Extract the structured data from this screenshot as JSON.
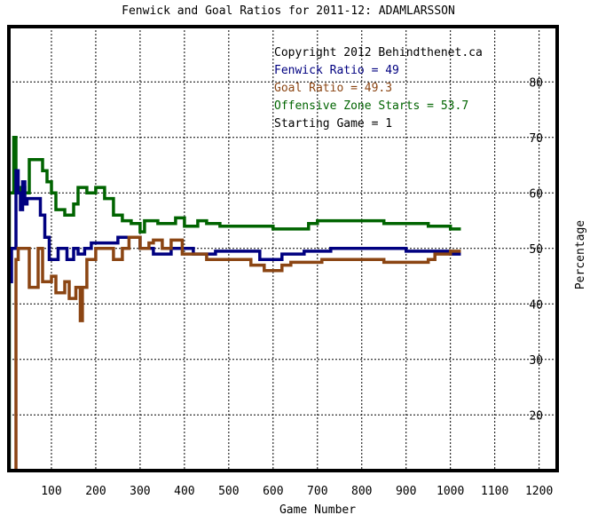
{
  "chart_data": {
    "type": "line",
    "title": "Fenwick and Goal Ratios for 2011-12: ADAMLARSSON",
    "xlabel": "Game Number",
    "ylabel": "Percentage",
    "xlim": [
      0,
      1250
    ],
    "ylim": [
      10,
      90
    ],
    "xticks": [
      100,
      200,
      300,
      400,
      500,
      600,
      700,
      800,
      900,
      1000,
      1100,
      1200
    ],
    "yticks": [
      20,
      30,
      40,
      50,
      60,
      70,
      80
    ],
    "grid": true,
    "annotations": [
      {
        "text": "Copyright 2012 Behindthenet.ca",
        "color": "#000000"
      },
      {
        "text": "Fenwick Ratio = 49",
        "color": "#000080"
      },
      {
        "text": "Goal Ratio = 49.3",
        "color": "#8b4513"
      },
      {
        "text": "Offensive Zone Starts = 53.7",
        "color": "#006400"
      },
      {
        "text": "Starting Game = 1",
        "color": "#000000"
      }
    ],
    "series": [
      {
        "name": "Fenwick Ratio",
        "color": "#000080",
        "points": [
          [
            10,
            44
          ],
          [
            10,
            50
          ],
          [
            20,
            50
          ],
          [
            20,
            64
          ],
          [
            25,
            64
          ],
          [
            25,
            60
          ],
          [
            30,
            60
          ],
          [
            30,
            57
          ],
          [
            35,
            57
          ],
          [
            35,
            62
          ],
          [
            40,
            62
          ],
          [
            40,
            58
          ],
          [
            45,
            58
          ],
          [
            45,
            59
          ],
          [
            75,
            59
          ],
          [
            75,
            56
          ],
          [
            85,
            56
          ],
          [
            85,
            52
          ],
          [
            95,
            52
          ],
          [
            95,
            48
          ],
          [
            115,
            48
          ],
          [
            115,
            50
          ],
          [
            135,
            50
          ],
          [
            135,
            48
          ],
          [
            150,
            48
          ],
          [
            150,
            50
          ],
          [
            160,
            50
          ],
          [
            160,
            49
          ],
          [
            175,
            49
          ],
          [
            175,
            50
          ],
          [
            190,
            50
          ],
          [
            190,
            51
          ],
          [
            250,
            51
          ],
          [
            250,
            52
          ],
          [
            300,
            52
          ],
          [
            300,
            50
          ],
          [
            330,
            50
          ],
          [
            330,
            49
          ],
          [
            370,
            49
          ],
          [
            370,
            50
          ],
          [
            420,
            50
          ],
          [
            420,
            49
          ],
          [
            470,
            49
          ],
          [
            470,
            49.5
          ],
          [
            570,
            49.5
          ],
          [
            570,
            48
          ],
          [
            620,
            48
          ],
          [
            620,
            49
          ],
          [
            670,
            49
          ],
          [
            670,
            49.5
          ],
          [
            730,
            49.5
          ],
          [
            730,
            50
          ],
          [
            900,
            50
          ],
          [
            900,
            49.5
          ],
          [
            1000,
            49.5
          ],
          [
            1000,
            49
          ],
          [
            1020,
            49
          ]
        ]
      },
      {
        "name": "Goal Ratio",
        "color": "#8b4513",
        "points": [
          [
            20,
            0
          ],
          [
            20,
            48
          ],
          [
            25,
            48
          ],
          [
            25,
            50
          ],
          [
            50,
            50
          ],
          [
            50,
            43
          ],
          [
            70,
            43
          ],
          [
            70,
            50
          ],
          [
            80,
            50
          ],
          [
            80,
            44
          ],
          [
            100,
            44
          ],
          [
            100,
            45
          ],
          [
            110,
            45
          ],
          [
            110,
            42
          ],
          [
            130,
            42
          ],
          [
            130,
            44
          ],
          [
            140,
            44
          ],
          [
            140,
            41
          ],
          [
            155,
            41
          ],
          [
            155,
            43
          ],
          [
            165,
            43
          ],
          [
            165,
            37
          ],
          [
            170,
            37
          ],
          [
            170,
            43
          ],
          [
            180,
            43
          ],
          [
            180,
            48
          ],
          [
            200,
            48
          ],
          [
            200,
            50
          ],
          [
            240,
            50
          ],
          [
            240,
            48
          ],
          [
            260,
            48
          ],
          [
            260,
            50
          ],
          [
            275,
            50
          ],
          [
            275,
            52
          ],
          [
            300,
            52
          ],
          [
            300,
            50
          ],
          [
            320,
            50
          ],
          [
            320,
            51
          ],
          [
            330,
            51
          ],
          [
            330,
            51.5
          ],
          [
            350,
            51.5
          ],
          [
            350,
            50
          ],
          [
            370,
            50
          ],
          [
            370,
            51.5
          ],
          [
            395,
            51.5
          ],
          [
            395,
            49
          ],
          [
            450,
            49
          ],
          [
            450,
            48
          ],
          [
            550,
            48
          ],
          [
            550,
            47
          ],
          [
            580,
            47
          ],
          [
            580,
            46
          ],
          [
            620,
            46
          ],
          [
            620,
            47
          ],
          [
            640,
            47
          ],
          [
            640,
            47.5
          ],
          [
            710,
            47.5
          ],
          [
            710,
            48
          ],
          [
            850,
            48
          ],
          [
            850,
            47.5
          ],
          [
            950,
            47.5
          ],
          [
            950,
            48
          ],
          [
            965,
            48
          ],
          [
            965,
            49
          ],
          [
            1000,
            49
          ],
          [
            1000,
            49.5
          ],
          [
            1020,
            49.5
          ]
        ]
      },
      {
        "name": "Offensive Zone Starts",
        "color": "#006400",
        "points": [
          [
            5,
            0
          ],
          [
            5,
            60
          ],
          [
            15,
            60
          ],
          [
            15,
            70
          ],
          [
            20,
            70
          ],
          [
            20,
            60
          ],
          [
            30,
            60
          ],
          [
            30,
            61
          ],
          [
            40,
            61
          ],
          [
            40,
            60
          ],
          [
            50,
            60
          ],
          [
            50,
            66
          ],
          [
            80,
            66
          ],
          [
            80,
            64
          ],
          [
            90,
            64
          ],
          [
            90,
            62
          ],
          [
            100,
            62
          ],
          [
            100,
            60
          ],
          [
            110,
            60
          ],
          [
            110,
            57
          ],
          [
            130,
            57
          ],
          [
            130,
            56
          ],
          [
            150,
            56
          ],
          [
            150,
            58
          ],
          [
            160,
            58
          ],
          [
            160,
            61
          ],
          [
            180,
            61
          ],
          [
            180,
            60
          ],
          [
            200,
            60
          ],
          [
            200,
            61
          ],
          [
            220,
            61
          ],
          [
            220,
            59
          ],
          [
            240,
            59
          ],
          [
            240,
            56
          ],
          [
            260,
            56
          ],
          [
            260,
            55
          ],
          [
            280,
            55
          ],
          [
            280,
            54.5
          ],
          [
            300,
            54.5
          ],
          [
            300,
            53
          ],
          [
            310,
            53
          ],
          [
            310,
            55
          ],
          [
            340,
            55
          ],
          [
            340,
            54.5
          ],
          [
            380,
            54.5
          ],
          [
            380,
            55.5
          ],
          [
            400,
            55.5
          ],
          [
            400,
            54
          ],
          [
            430,
            54
          ],
          [
            430,
            55
          ],
          [
            450,
            55
          ],
          [
            450,
            54.5
          ],
          [
            480,
            54.5
          ],
          [
            480,
            54
          ],
          [
            600,
            54
          ],
          [
            600,
            53.5
          ],
          [
            680,
            53.5
          ],
          [
            680,
            54.5
          ],
          [
            700,
            54.5
          ],
          [
            700,
            55
          ],
          [
            850,
            55
          ],
          [
            850,
            54.5
          ],
          [
            950,
            54.5
          ],
          [
            950,
            54
          ],
          [
            1000,
            54
          ],
          [
            1000,
            53.5
          ],
          [
            1020,
            53.5
          ]
        ]
      }
    ]
  }
}
